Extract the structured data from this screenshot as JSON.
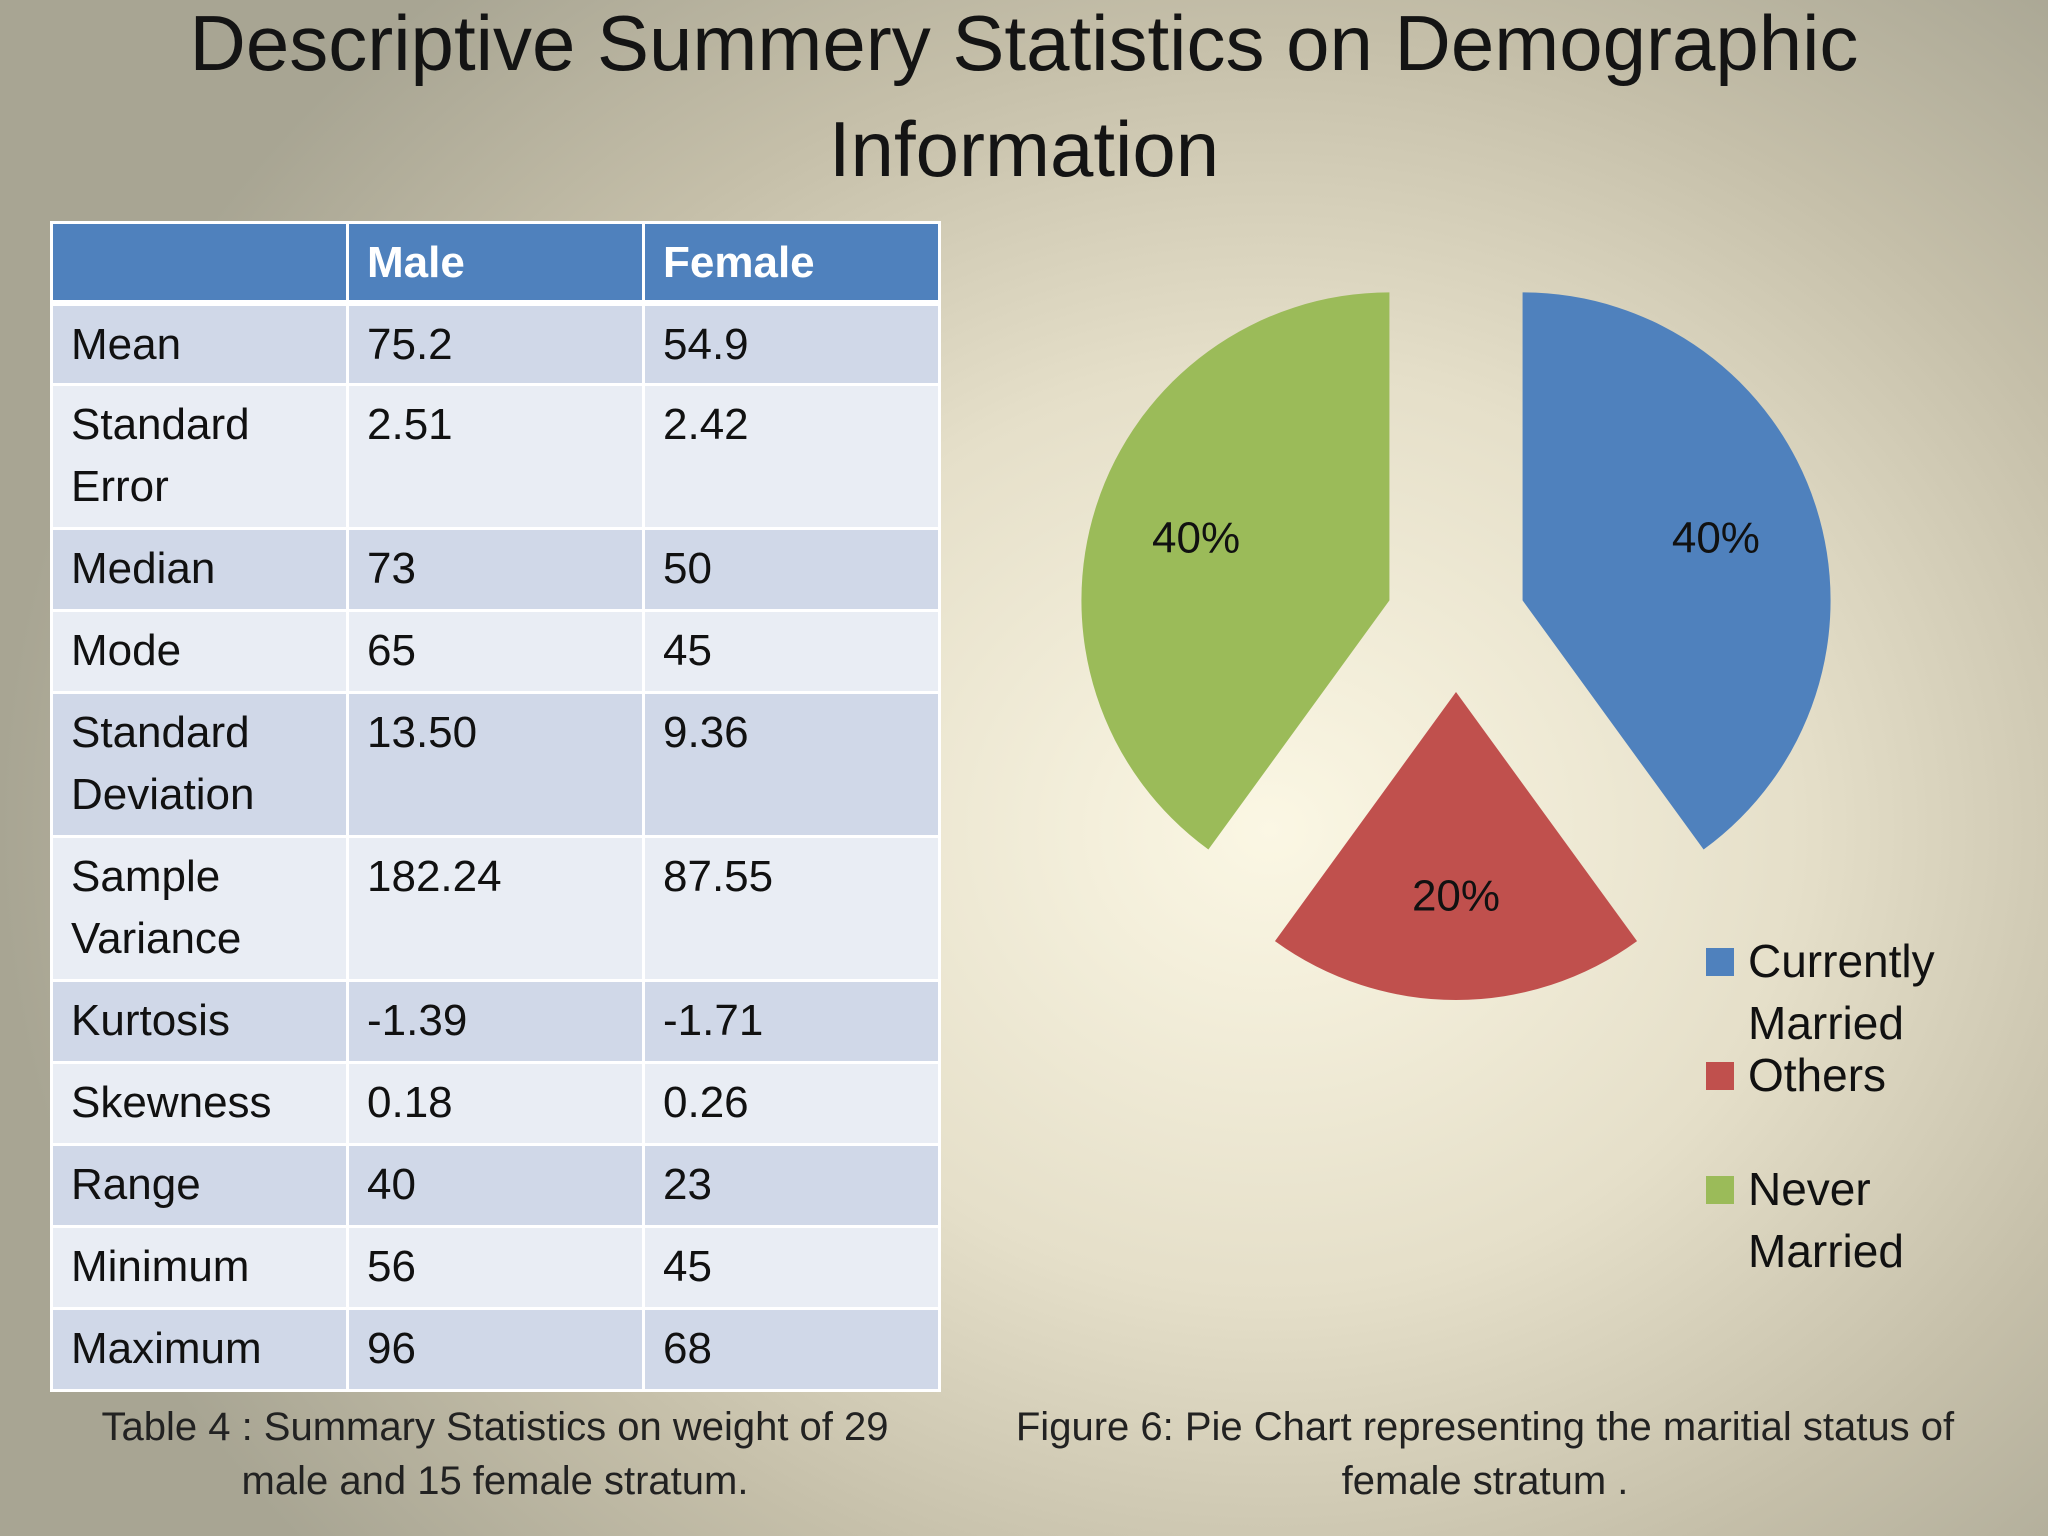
{
  "slide": {
    "title_line1": "Descriptive Summery Statistics on Demographic",
    "title_line2": "Information"
  },
  "table": {
    "columns": [
      "",
      "Male",
      "Female"
    ],
    "rows": [
      {
        "label": "Mean",
        "male": "75.2",
        "female": "54.9"
      },
      {
        "label": "Standard Error",
        "male": "2.51",
        "female": "2.42"
      },
      {
        "label": "Median",
        "male": "73",
        "female": "50"
      },
      {
        "label": "Mode",
        "male": "65",
        "female": "45"
      },
      {
        "label": "Standard Deviation",
        "male": "13.50",
        "female": "9.36"
      },
      {
        "label": "Sample Variance",
        "male": "182.24",
        "female": "87.55"
      },
      {
        "label": "Kurtosis",
        "male": "-1.39",
        "female": "-1.71"
      },
      {
        "label": "Skewness",
        "male": "0.18",
        "female": "0.26"
      },
      {
        "label": "Range",
        "male": "40",
        "female": "23"
      },
      {
        "label": "Minimum",
        "male": "56",
        "female": "45"
      },
      {
        "label": "Maximum",
        "male": "96",
        "female": "68"
      }
    ],
    "caption_line1": "Table 4 : Summary Statistics on weight of 29",
    "caption_line2": "male and 15 female stratum."
  },
  "chart_data": {
    "type": "pie",
    "title": "",
    "slices": [
      {
        "name": "Currently Married",
        "value": 40,
        "label": "40%",
        "color": "#4f81bd"
      },
      {
        "name": "Others",
        "value": 20,
        "label": "20%",
        "color": "#c0504d"
      },
      {
        "name": "Never Married",
        "value": 40,
        "label": "40%",
        "color": "#9bbb59"
      }
    ],
    "legend": "right",
    "exploded": true
  },
  "legend_labels": {
    "currently_married_1": "Currently",
    "currently_married_2": "Married",
    "others": "Others",
    "never_married_1": "Never",
    "never_married_2": "Married"
  },
  "figure": {
    "caption_line1": "Figure 6: Pie Chart representing the maritial status of",
    "caption_line2": "female stratum ."
  }
}
